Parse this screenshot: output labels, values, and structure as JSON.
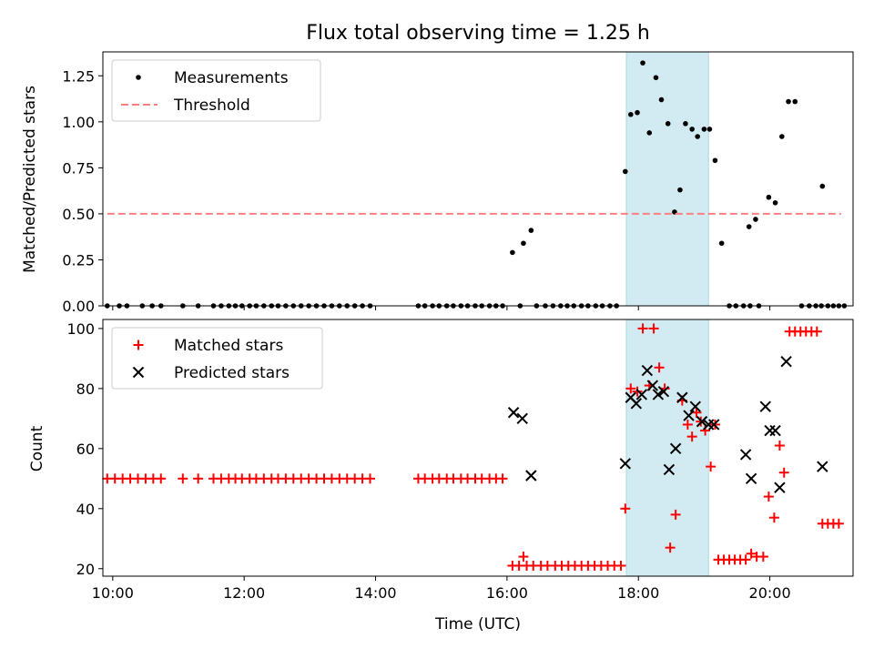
{
  "colors": {
    "measurement": "#000000",
    "threshold": "#ff7f7f",
    "matched": "#ff0000",
    "predicted": "#000000",
    "window": "#add8e6"
  },
  "chart_data": [
    {
      "type": "scatter",
      "title": "Flux total observing time = 1.25 h",
      "xlabel": "",
      "ylabel": "Matched/Predicted stars",
      "xlim": [
        "09:51",
        "21:16"
      ],
      "ylim": [
        0,
        1.38
      ],
      "x_ticks": [
        "10:00",
        "12:00",
        "14:00",
        "16:00",
        "18:00",
        "20:00"
      ],
      "y_ticks": [
        "0.00",
        "0.25",
        "0.50",
        "0.75",
        "1.00",
        "1.25"
      ],
      "highlight_window": [
        "17:49",
        "19:04"
      ],
      "legend": {
        "position": "upper-left",
        "entries": [
          "Measurements",
          "Threshold"
        ]
      },
      "series": [
        {
          "name": "Measurements",
          "marker": "dot",
          "points": [
            [
              "09:55",
              0
            ],
            [
              "10:06",
              0
            ],
            [
              "10:13",
              0
            ],
            [
              "10:27",
              0
            ],
            [
              "10:36",
              0
            ],
            [
              "10:44",
              0
            ],
            [
              "11:04",
              0
            ],
            [
              "11:18",
              0
            ],
            [
              "11:32",
              0
            ],
            [
              "11:39",
              0
            ],
            [
              "11:46",
              0
            ],
            [
              "11:52",
              0
            ],
            [
              "11:58",
              0
            ],
            [
              "12:05",
              0
            ],
            [
              "12:11",
              0
            ],
            [
              "12:18",
              0
            ],
            [
              "12:25",
              0
            ],
            [
              "12:31",
              0
            ],
            [
              "12:38",
              0
            ],
            [
              "12:45",
              0
            ],
            [
              "12:52",
              0
            ],
            [
              "12:59",
              0
            ],
            [
              "13:06",
              0
            ],
            [
              "13:13",
              0
            ],
            [
              "13:20",
              0
            ],
            [
              "13:27",
              0
            ],
            [
              "13:34",
              0
            ],
            [
              "13:41",
              0
            ],
            [
              "13:48",
              0
            ],
            [
              "13:55",
              0
            ],
            [
              "14:39",
              0
            ],
            [
              "14:45",
              0
            ],
            [
              "14:52",
              0
            ],
            [
              "14:58",
              0
            ],
            [
              "15:05",
              0
            ],
            [
              "15:11",
              0
            ],
            [
              "15:18",
              0
            ],
            [
              "15:24",
              0
            ],
            [
              "15:31",
              0
            ],
            [
              "15:37",
              0
            ],
            [
              "15:44",
              0
            ],
            [
              "15:50",
              0
            ],
            [
              "15:56",
              0
            ],
            [
              "16:05",
              0.29
            ],
            [
              "16:15",
              0.34
            ],
            [
              "16:22",
              0.41
            ],
            [
              "16:12",
              0
            ],
            [
              "16:27",
              0
            ],
            [
              "16:35",
              0
            ],
            [
              "16:42",
              0
            ],
            [
              "16:49",
              0
            ],
            [
              "16:55",
              0
            ],
            [
              "17:01",
              0
            ],
            [
              "17:08",
              0
            ],
            [
              "17:14",
              0
            ],
            [
              "17:21",
              0
            ],
            [
              "17:27",
              0
            ],
            [
              "17:34",
              0
            ],
            [
              "17:40",
              0
            ],
            [
              "17:48",
              0.73
            ],
            [
              "17:53",
              1.04
            ],
            [
              "17:59",
              1.05
            ],
            [
              "18:04",
              1.32
            ],
            [
              "18:10",
              0.94
            ],
            [
              "18:16",
              1.24
            ],
            [
              "18:21",
              1.12
            ],
            [
              "18:27",
              0.99
            ],
            [
              "18:33",
              0.51
            ],
            [
              "18:38",
              0.63
            ],
            [
              "18:43",
              0.99
            ],
            [
              "18:49",
              0.96
            ],
            [
              "18:54",
              0.92
            ],
            [
              "19:00",
              0.96
            ],
            [
              "19:05",
              0.96
            ],
            [
              "19:10",
              0.79
            ],
            [
              "19:16",
              0.34
            ],
            [
              "19:23",
              0
            ],
            [
              "19:29",
              0
            ],
            [
              "19:36",
              0
            ],
            [
              "19:42",
              0
            ],
            [
              "19:50",
              0
            ],
            [
              "19:41",
              0.43
            ],
            [
              "19:47",
              0.47
            ],
            [
              "19:59",
              0.59
            ],
            [
              "20:05",
              0.56
            ],
            [
              "20:11",
              0.92
            ],
            [
              "20:17",
              1.11
            ],
            [
              "20:23",
              1.11
            ],
            [
              "20:29",
              0
            ],
            [
              "20:36",
              0
            ],
            [
              "20:42",
              0
            ],
            [
              "20:47",
              0
            ],
            [
              "20:53",
              0
            ],
            [
              "20:58",
              0
            ],
            [
              "21:03",
              0
            ],
            [
              "21:08",
              0
            ],
            [
              "20:48",
              0.65
            ]
          ]
        },
        {
          "name": "Threshold",
          "style": "dashed",
          "points": [
            [
              "09:55",
              0.5
            ],
            [
              "21:05",
              0.5
            ]
          ]
        }
      ]
    },
    {
      "type": "scatter",
      "title": "",
      "xlabel": "Time (UTC)",
      "ylabel": "Count",
      "xlim": [
        "09:51",
        "21:16"
      ],
      "ylim": [
        17.5,
        103
      ],
      "x_ticks": [
        "10:00",
        "12:00",
        "14:00",
        "16:00",
        "18:00",
        "20:00"
      ],
      "y_ticks": [
        "20",
        "40",
        "60",
        "80",
        "100"
      ],
      "highlight_window": [
        "17:49",
        "19:04"
      ],
      "legend": {
        "position": "upper-left",
        "entries": [
          "Matched stars",
          "Predicted stars"
        ]
      },
      "series": [
        {
          "name": "Matched stars",
          "marker": "plus",
          "points": [
            [
              "09:55",
              50
            ],
            [
              "10:02",
              50
            ],
            [
              "10:09",
              50
            ],
            [
              "10:16",
              50
            ],
            [
              "10:23",
              50
            ],
            [
              "10:30",
              50
            ],
            [
              "10:37",
              50
            ],
            [
              "10:44",
              50
            ],
            [
              "11:04",
              50
            ],
            [
              "11:18",
              50
            ],
            [
              "11:32",
              50
            ],
            [
              "11:39",
              50
            ],
            [
              "11:46",
              50
            ],
            [
              "11:52",
              50
            ],
            [
              "11:58",
              50
            ],
            [
              "12:05",
              50
            ],
            [
              "12:11",
              50
            ],
            [
              "12:18",
              50
            ],
            [
              "12:25",
              50
            ],
            [
              "12:31",
              50
            ],
            [
              "12:38",
              50
            ],
            [
              "12:45",
              50
            ],
            [
              "12:52",
              50
            ],
            [
              "12:59",
              50
            ],
            [
              "13:06",
              50
            ],
            [
              "13:13",
              50
            ],
            [
              "13:20",
              50
            ],
            [
              "13:27",
              50
            ],
            [
              "13:34",
              50
            ],
            [
              "13:41",
              50
            ],
            [
              "13:48",
              50
            ],
            [
              "13:55",
              50
            ],
            [
              "14:39",
              50
            ],
            [
              "14:45",
              50
            ],
            [
              "14:52",
              50
            ],
            [
              "14:58",
              50
            ],
            [
              "15:05",
              50
            ],
            [
              "15:11",
              50
            ],
            [
              "15:18",
              50
            ],
            [
              "15:24",
              50
            ],
            [
              "15:31",
              50
            ],
            [
              "15:37",
              50
            ],
            [
              "15:44",
              50
            ],
            [
              "15:50",
              50
            ],
            [
              "15:56",
              50
            ],
            [
              "16:05",
              21
            ],
            [
              "16:11",
              21
            ],
            [
              "16:18",
              21
            ],
            [
              "16:24",
              21
            ],
            [
              "16:31",
              21
            ],
            [
              "16:37",
              21
            ],
            [
              "16:44",
              21
            ],
            [
              "16:50",
              21
            ],
            [
              "16:56",
              21
            ],
            [
              "17:02",
              21
            ],
            [
              "17:08",
              21
            ],
            [
              "17:14",
              21
            ],
            [
              "17:20",
              21
            ],
            [
              "17:26",
              21
            ],
            [
              "17:32",
              21
            ],
            [
              "17:38",
              21
            ],
            [
              "17:44",
              21
            ],
            [
              "16:15",
              24
            ],
            [
              "17:48",
              40
            ],
            [
              "17:53",
              80
            ],
            [
              "17:59",
              79
            ],
            [
              "18:04",
              100
            ],
            [
              "18:10",
              81
            ],
            [
              "18:14",
              100
            ],
            [
              "18:19",
              87
            ],
            [
              "18:24",
              80
            ],
            [
              "18:29",
              27
            ],
            [
              "18:34",
              38
            ],
            [
              "18:40",
              76
            ],
            [
              "18:45",
              68
            ],
            [
              "18:49",
              64
            ],
            [
              "18:53",
              72
            ],
            [
              "18:57",
              69
            ],
            [
              "19:01",
              66
            ],
            [
              "19:06",
              54
            ],
            [
              "19:10",
              68
            ],
            [
              "19:13",
              23
            ],
            [
              "19:18",
              23
            ],
            [
              "19:23",
              23
            ],
            [
              "19:28",
              23
            ],
            [
              "19:33",
              23
            ],
            [
              "19:38",
              23
            ],
            [
              "19:43",
              25
            ],
            [
              "19:48",
              24
            ],
            [
              "19:54",
              24
            ],
            [
              "19:59",
              44
            ],
            [
              "20:04",
              37
            ],
            [
              "20:09",
              61
            ],
            [
              "20:13",
              52
            ],
            [
              "20:18",
              99
            ],
            [
              "20:23",
              99
            ],
            [
              "20:28",
              99
            ],
            [
              "20:33",
              99
            ],
            [
              "20:38",
              99
            ],
            [
              "20:43",
              99
            ],
            [
              "20:48",
              35
            ],
            [
              "20:53",
              35
            ],
            [
              "20:58",
              35
            ],
            [
              "21:03",
              35
            ]
          ]
        },
        {
          "name": "Predicted stars",
          "marker": "x",
          "points": [
            [
              "16:06",
              72
            ],
            [
              "16:14",
              70
            ],
            [
              "16:22",
              51
            ],
            [
              "17:48",
              55
            ],
            [
              "17:53",
              77
            ],
            [
              "17:58",
              75
            ],
            [
              "18:03",
              78
            ],
            [
              "18:08",
              86
            ],
            [
              "18:13",
              81
            ],
            [
              "18:18",
              78
            ],
            [
              "18:23",
              79
            ],
            [
              "18:28",
              53
            ],
            [
              "18:34",
              60
            ],
            [
              "18:40",
              77
            ],
            [
              "18:46",
              71
            ],
            [
              "18:52",
              74
            ],
            [
              "18:58",
              69
            ],
            [
              "19:04",
              68
            ],
            [
              "19:09",
              68
            ],
            [
              "19:38",
              58
            ],
            [
              "19:43",
              50
            ],
            [
              "19:56",
              74
            ],
            [
              "20:00",
              66
            ],
            [
              "20:05",
              66
            ],
            [
              "20:09",
              47
            ],
            [
              "20:15",
              89
            ],
            [
              "20:48",
              54
            ]
          ]
        }
      ]
    }
  ]
}
